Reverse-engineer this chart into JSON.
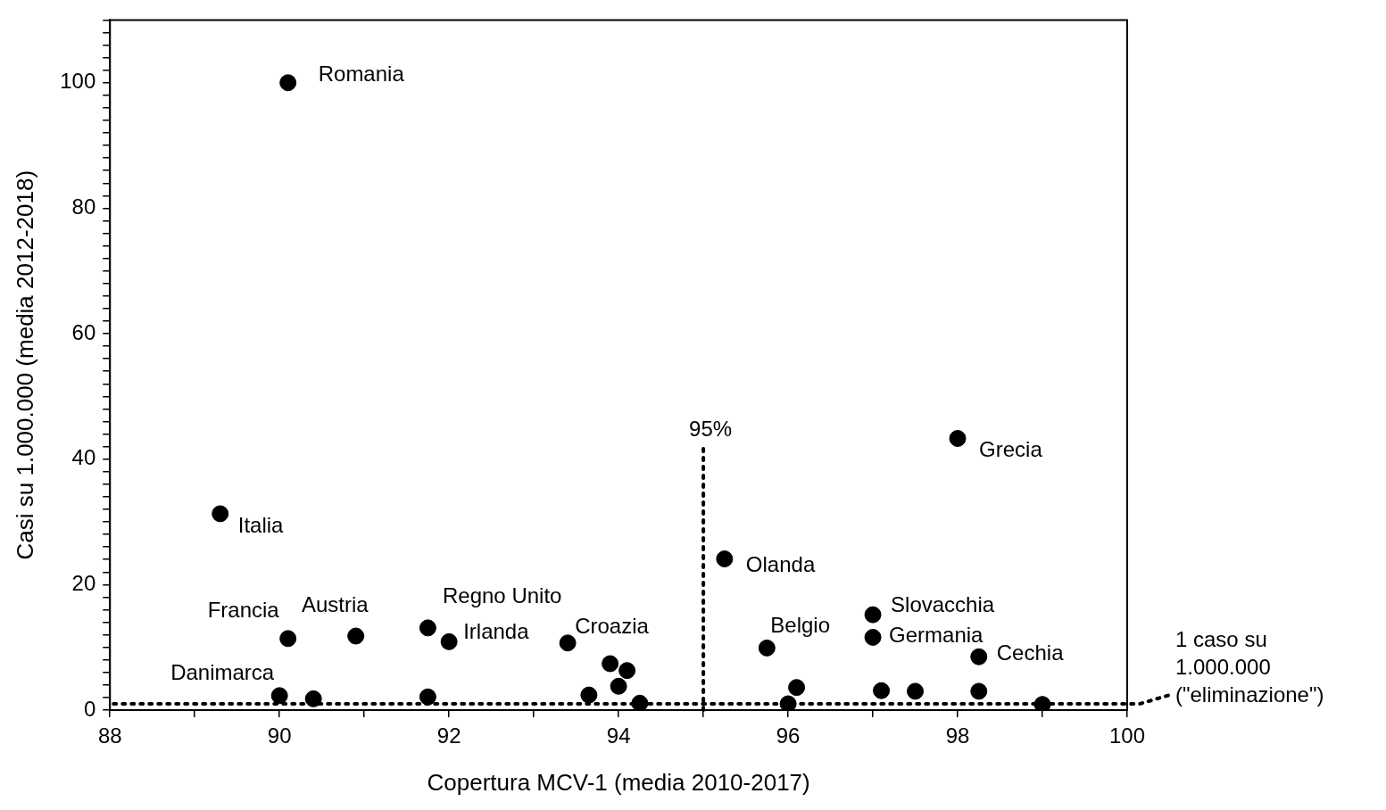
{
  "chart_data": {
    "type": "scatter",
    "xlabel": "Copertura MCV-1 (media 2010-2017)",
    "ylabel": "Casi su 1.000.000 (media 2012-2018)",
    "x": [
      90.1,
      89.3,
      98.0,
      95.25,
      90.1,
      90.9,
      91.75,
      92.0,
      93.4,
      93.9,
      94.1,
      94.0,
      93.65,
      94.25,
      90.0,
      90.4,
      91.75,
      95.75,
      96.1,
      96.0,
      97.0,
      97.0,
      97.1,
      97.5,
      98.25,
      98.25,
      99.0
    ],
    "series": [
      {
        "color": "#000000",
        "values": [
          100,
          31.3,
          43.3,
          24.1,
          11.4,
          11.8,
          13.1,
          10.9,
          10.7,
          7.4,
          6.3,
          3.8,
          2.4,
          1.1,
          2.3,
          1.8,
          2.1,
          9.9,
          3.6,
          1.0,
          15.2,
          11.6,
          3.1,
          3.0,
          8.5,
          3.0,
          0.9
        ]
      }
    ],
    "marker": "circle",
    "legend": false,
    "grid": false,
    "xlim": [
      88,
      100
    ],
    "ylim": [
      0,
      110
    ],
    "xticks": [
      88,
      {
        "value": 89,
        "label": null
      },
      90,
      {
        "value": 91,
        "label": null
      },
      92,
      {
        "value": 93,
        "label": null
      },
      94,
      {
        "value": 95,
        "label": null
      },
      96,
      {
        "value": 97,
        "label": null
      },
      98,
      {
        "value": 99,
        "label": null
      },
      100
    ],
    "yticks": [
      0,
      {
        "value": 2,
        "label": null
      },
      {
        "value": 4,
        "label": null
      },
      {
        "value": 6,
        "label": null
      },
      {
        "value": 8,
        "label": null
      },
      {
        "value": 10,
        "label": null
      },
      {
        "value": 12,
        "label": null
      },
      {
        "value": 14,
        "label": null
      },
      {
        "value": 16,
        "label": null
      },
      {
        "value": 18,
        "label": null
      },
      20,
      {
        "value": 22,
        "label": null
      },
      {
        "value": 24,
        "label": null
      },
      {
        "value": 26,
        "label": null
      },
      {
        "value": 28,
        "label": null
      },
      {
        "value": 30,
        "label": null
      },
      {
        "value": 32,
        "label": null
      },
      {
        "value": 34,
        "label": null
      },
      {
        "value": 36,
        "label": null
      },
      {
        "value": 38,
        "label": null
      },
      40,
      {
        "value": 42,
        "label": null
      },
      {
        "value": 44,
        "label": null
      },
      {
        "value": 46,
        "label": null
      },
      {
        "value": 48,
        "label": null
      },
      {
        "value": 50,
        "label": null
      },
      {
        "value": 52,
        "label": null
      },
      {
        "value": 54,
        "label": null
      },
      {
        "value": 56,
        "label": null
      },
      {
        "value": 58,
        "label": null
      },
      60,
      {
        "value": 62,
        "label": null
      },
      {
        "value": 64,
        "label": null
      },
      {
        "value": 66,
        "label": null
      },
      {
        "value": 68,
        "label": null
      },
      {
        "value": 70,
        "label": null
      },
      {
        "value": 72,
        "label": null
      },
      {
        "value": 74,
        "label": null
      },
      {
        "value": 76,
        "label": null
      },
      {
        "value": 78,
        "label": null
      },
      80,
      {
        "value": 82,
        "label": null
      },
      {
        "value": 84,
        "label": null
      },
      {
        "value": 86,
        "label": null
      },
      {
        "value": 88,
        "label": null
      },
      {
        "value": 90,
        "label": null
      },
      {
        "value": 92,
        "label": null
      },
      {
        "value": 94,
        "label": null
      },
      {
        "value": 96,
        "label": null
      },
      {
        "value": 98,
        "label": null
      },
      100,
      {
        "value": 102,
        "label": null
      },
      {
        "value": 104,
        "label": null
      },
      {
        "value": 106,
        "label": null
      },
      {
        "value": 108,
        "label": null
      },
      {
        "value": 110,
        "label": null
      }
    ],
    "ref_lines": [
      {
        "axis": "x",
        "value": 95,
        "label": "95%",
        "line_style": "dotted"
      },
      {
        "axis": "y",
        "value": 1,
        "label": "1 caso su\n1.000.000\n(\"eliminazione\")",
        "line_style": "dotted"
      }
    ],
    "annotations": [
      {
        "text": "Romania",
        "x": 90.1,
        "y": 100
      },
      {
        "text": "Italia",
        "x": 89.3,
        "y": 31.3
      },
      {
        "text": "Grecia",
        "x": 98.0,
        "y": 43.3
      },
      {
        "text": "Olanda",
        "x": 95.25,
        "y": 24.1
      },
      {
        "text": "Francia",
        "x": 90.1,
        "y": 11.4
      },
      {
        "text": "Austria",
        "x": 90.9,
        "y": 11.8
      },
      {
        "text": "Regno Unito",
        "x": 91.75,
        "y": 13.1
      },
      {
        "text": "Irlanda",
        "x": 92.0,
        "y": 10.9
      },
      {
        "text": "Croazia",
        "x": 93.4,
        "y": 10.7
      },
      {
        "text": "Danimarca",
        "x": 90.0,
        "y": 2.3
      },
      {
        "text": "Belgio",
        "x": 95.75,
        "y": 9.9
      },
      {
        "text": "Slovacchia",
        "x": 97.0,
        "y": 15.2
      },
      {
        "text": "Germania",
        "x": 97.0,
        "y": 11.6
      },
      {
        "text": "Cechia",
        "x": 98.25,
        "y": 8.5
      }
    ]
  }
}
